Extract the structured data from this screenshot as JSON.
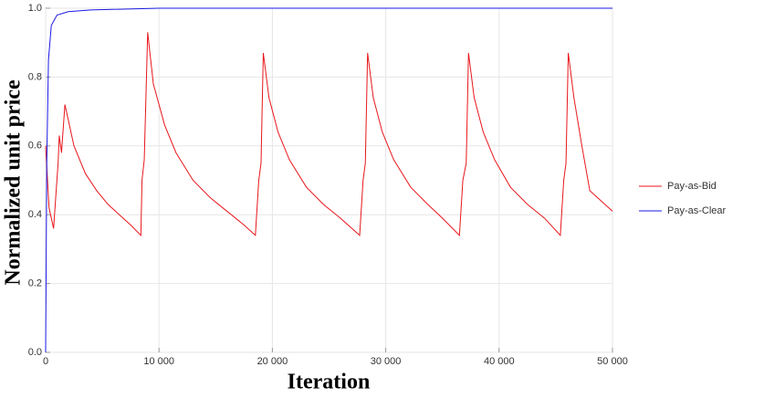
{
  "chart_data": {
    "type": "line",
    "xlabel": "Iteration",
    "ylabel": "Normalized unit price",
    "xlim": [
      0,
      50000
    ],
    "ylim": [
      0,
      1
    ],
    "xticks": [
      0,
      {
        "value": 10000,
        "label": "10 000"
      },
      {
        "value": 20000,
        "label": "20 000"
      },
      {
        "value": 30000,
        "label": "30 000"
      },
      {
        "value": 40000,
        "label": "40 000"
      },
      {
        "value": 50000,
        "label": "50 000"
      }
    ],
    "yticks": [
      {
        "value": 0,
        "label": "0.0"
      },
      0.2,
      0.4,
      0.6,
      0.8,
      {
        "value": 1,
        "label": "1.0"
      }
    ],
    "grid": true,
    "legend": "right",
    "series": [
      {
        "name": "Pay-as-Bid",
        "color": "#e8161b",
        "x": [
          0,
          300,
          700,
          1100,
          1200,
          1400,
          1700,
          2500,
          3500,
          4500,
          5500,
          6500,
          7500,
          8400,
          8500,
          8700,
          9000,
          9500,
          10500,
          11500,
          13000,
          14500,
          16000,
          17500,
          18500,
          18800,
          19000,
          19200,
          19700,
          20500,
          21500,
          23000,
          24500,
          26000,
          27700,
          28000,
          28200,
          28400,
          28900,
          29700,
          30700,
          32200,
          33700,
          35000,
          36500,
          36800,
          37100,
          37300,
          37800,
          38600,
          39600,
          41000,
          42500,
          44000,
          45400,
          45700,
          45900,
          46100,
          46600,
          47300,
          48000,
          49000,
          50000
        ],
        "values": [
          0.6,
          0.42,
          0.36,
          0.55,
          0.63,
          0.58,
          0.72,
          0.6,
          0.52,
          0.47,
          0.43,
          0.4,
          0.37,
          0.34,
          0.5,
          0.56,
          0.93,
          0.78,
          0.66,
          0.58,
          0.5,
          0.45,
          0.41,
          0.37,
          0.34,
          0.5,
          0.55,
          0.87,
          0.74,
          0.64,
          0.56,
          0.48,
          0.43,
          0.39,
          0.34,
          0.5,
          0.55,
          0.87,
          0.74,
          0.64,
          0.56,
          0.48,
          0.43,
          0.39,
          0.34,
          0.5,
          0.55,
          0.87,
          0.74,
          0.64,
          0.56,
          0.48,
          0.43,
          0.39,
          0.34,
          0.5,
          0.55,
          0.87,
          0.74,
          0.6,
          0.47,
          0.44,
          0.41
        ]
      },
      {
        "name": "Pay-as-Clear",
        "color": "#1a1ae6",
        "x": [
          0,
          100,
          250,
          500,
          1000,
          2000,
          4000,
          10000,
          50000
        ],
        "values": [
          0,
          0.55,
          0.85,
          0.95,
          0.98,
          0.99,
          0.995,
          1,
          1
        ]
      }
    ]
  }
}
